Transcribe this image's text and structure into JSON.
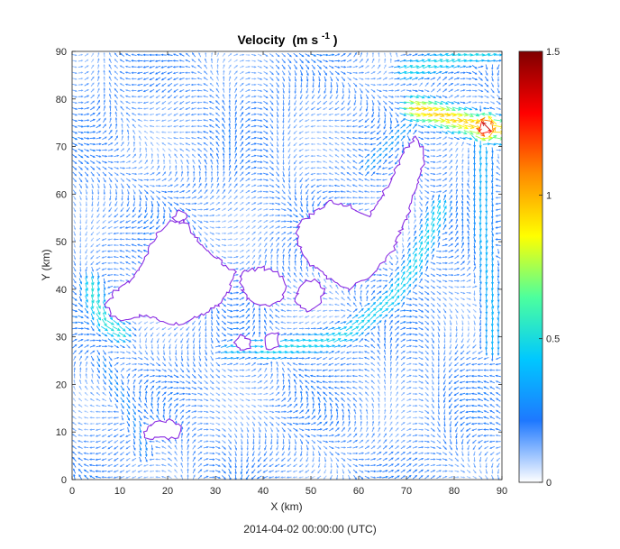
{
  "chart_data": {
    "type": "quiver",
    "title": "Velocity",
    "title_unit": "(m s",
    "title_exp": "-1",
    "title_close": ")",
    "xlabel": "X (km)",
    "ylabel": "Y (km)",
    "xlim": [
      0,
      90
    ],
    "ylim": [
      0,
      90
    ],
    "xticks": [
      0,
      10,
      20,
      30,
      40,
      50,
      60,
      70,
      80,
      90
    ],
    "yticks": [
      0,
      10,
      20,
      30,
      40,
      50,
      60,
      70,
      80,
      90
    ],
    "grid": false,
    "colorbar": {
      "lim": [
        0,
        1.5
      ],
      "ticks": [
        0,
        0.5,
        1,
        1.5
      ],
      "tick_labels": [
        "0",
        "0.5",
        "1",
        "1.5"
      ],
      "colormap": "jet-white-low",
      "stops": [
        "#ffffff",
        "#1e78ff",
        "#00c8ff",
        "#4cff9e",
        "#ffff00",
        "#ff8c00",
        "#ff0000",
        "#7f0000"
      ]
    },
    "coastline_color": "#8a2be2",
    "islands": [
      {
        "name": "",
        "outline": [
          [
            7,
            37
          ],
          [
            9,
            39.5
          ],
          [
            13,
            42.5
          ],
          [
            15.5,
            47
          ],
          [
            18,
            52
          ],
          [
            21,
            54.5
          ],
          [
            24,
            53.5
          ],
          [
            27,
            49
          ],
          [
            31,
            46
          ],
          [
            34,
            43.5
          ],
          [
            33,
            40
          ],
          [
            31,
            37
          ],
          [
            27,
            34.5
          ],
          [
            23,
            32.5
          ],
          [
            19,
            33
          ],
          [
            15,
            34.5
          ],
          [
            11,
            33.5
          ],
          [
            8,
            34.5
          ]
        ]
      },
      {
        "name": "",
        "outline": [
          [
            35,
            42.5
          ],
          [
            37,
            44
          ],
          [
            40,
            44.5
          ],
          [
            43,
            43.5
          ],
          [
            45,
            41
          ],
          [
            44,
            38
          ],
          [
            41,
            36.5
          ],
          [
            38,
            37
          ],
          [
            36,
            39
          ]
        ]
      },
      {
        "name": "",
        "outline": [
          [
            47,
            39
          ],
          [
            48.5,
            41.5
          ],
          [
            51,
            42
          ],
          [
            53,
            40
          ],
          [
            52,
            37
          ],
          [
            49,
            35.5
          ],
          [
            47,
            36.5
          ]
        ]
      },
      {
        "name": "",
        "outline": [
          [
            50,
            45
          ],
          [
            47,
            50
          ],
          [
            47.5,
            53.5
          ],
          [
            51,
            56.5
          ],
          [
            54,
            58.5
          ],
          [
            58,
            57.5
          ],
          [
            62,
            55.5
          ],
          [
            65,
            60
          ],
          [
            67,
            63.5
          ],
          [
            69,
            68
          ],
          [
            72,
            72
          ],
          [
            74,
            68
          ],
          [
            72,
            62
          ],
          [
            70,
            55
          ],
          [
            67,
            48
          ],
          [
            63,
            43
          ],
          [
            58,
            40
          ],
          [
            54,
            42
          ],
          [
            52,
            44
          ]
        ]
      },
      {
        "name": "",
        "outline": [
          [
            40,
            29.5
          ],
          [
            41.5,
            31
          ],
          [
            43,
            30.5
          ],
          [
            43.5,
            28.5
          ],
          [
            42,
            27
          ],
          [
            40.5,
            27.5
          ]
        ]
      },
      {
        "name": "",
        "outline": [
          [
            34,
            29
          ],
          [
            35.5,
            30.5
          ],
          [
            37,
            29.8
          ],
          [
            37,
            27.6
          ],
          [
            35.3,
            27.2
          ]
        ]
      },
      {
        "name": "",
        "outline": [
          [
            15,
            10
          ],
          [
            17,
            12
          ],
          [
            20.5,
            12.5
          ],
          [
            23,
            11
          ],
          [
            22,
            9
          ],
          [
            18,
            8.5
          ],
          [
            15.5,
            9
          ]
        ]
      },
      {
        "name": "",
        "outline": [
          [
            21,
            55
          ],
          [
            22.5,
            56.5
          ],
          [
            24,
            55.5
          ],
          [
            23.5,
            54
          ]
        ]
      }
    ],
    "currents": [
      {
        "name": "",
        "path": [
          [
            6,
            25
          ],
          [
            9,
            20
          ],
          [
            12,
            15
          ],
          [
            14,
            10
          ],
          [
            15,
            6
          ]
        ],
        "speed": 0.28
      },
      {
        "name": "",
        "path": [
          [
            4,
            41
          ],
          [
            5,
            37
          ],
          [
            7,
            33
          ],
          [
            10,
            31
          ]
        ],
        "speed": 0.52
      },
      {
        "name": "",
        "path": [
          [
            40,
            27
          ],
          [
            46,
            28
          ],
          [
            53,
            29
          ],
          [
            58,
            31
          ],
          [
            62,
            34
          ],
          [
            67,
            38
          ],
          [
            71,
            44
          ],
          [
            74,
            50
          ],
          [
            77,
            57
          ]
        ],
        "speed": 0.47
      },
      {
        "name": "",
        "path": [
          [
            33,
            27
          ],
          [
            37,
            28
          ],
          [
            40,
            28
          ]
        ],
        "speed": 0.4
      },
      {
        "name": "",
        "path": [
          [
            72,
            78
          ],
          [
            76,
            77
          ],
          [
            81,
            75.5
          ],
          [
            86,
            74
          ],
          [
            89,
            73.5
          ]
        ],
        "speed": 0.95
      },
      {
        "name": "",
        "path": [
          [
            86,
            76
          ],
          [
            86,
            68
          ],
          [
            86,
            60
          ],
          [
            86,
            52
          ],
          [
            87,
            44
          ],
          [
            88,
            35
          ],
          [
            88,
            28
          ]
        ],
        "speed": 0.38
      },
      {
        "name": "",
        "path": [
          [
            70,
            86
          ],
          [
            76,
            87.5
          ],
          [
            82,
            89
          ],
          [
            88,
            90
          ]
        ],
        "speed": 0.48
      },
      {
        "name": "",
        "path": [
          [
            62,
            66
          ],
          [
            66,
            70
          ],
          [
            70,
            74
          ],
          [
            72,
            76
          ],
          [
            74,
            78
          ]
        ],
        "speed": 0.32
      }
    ],
    "hotspots": [
      {
        "name": "",
        "x": 86.5,
        "y": 74,
        "sigma": 2.2,
        "peak": 1.4
      }
    ],
    "background_speed": 0.14
  },
  "footer": {
    "timestamp": "2014-04-02 00:00:00  (UTC)"
  }
}
